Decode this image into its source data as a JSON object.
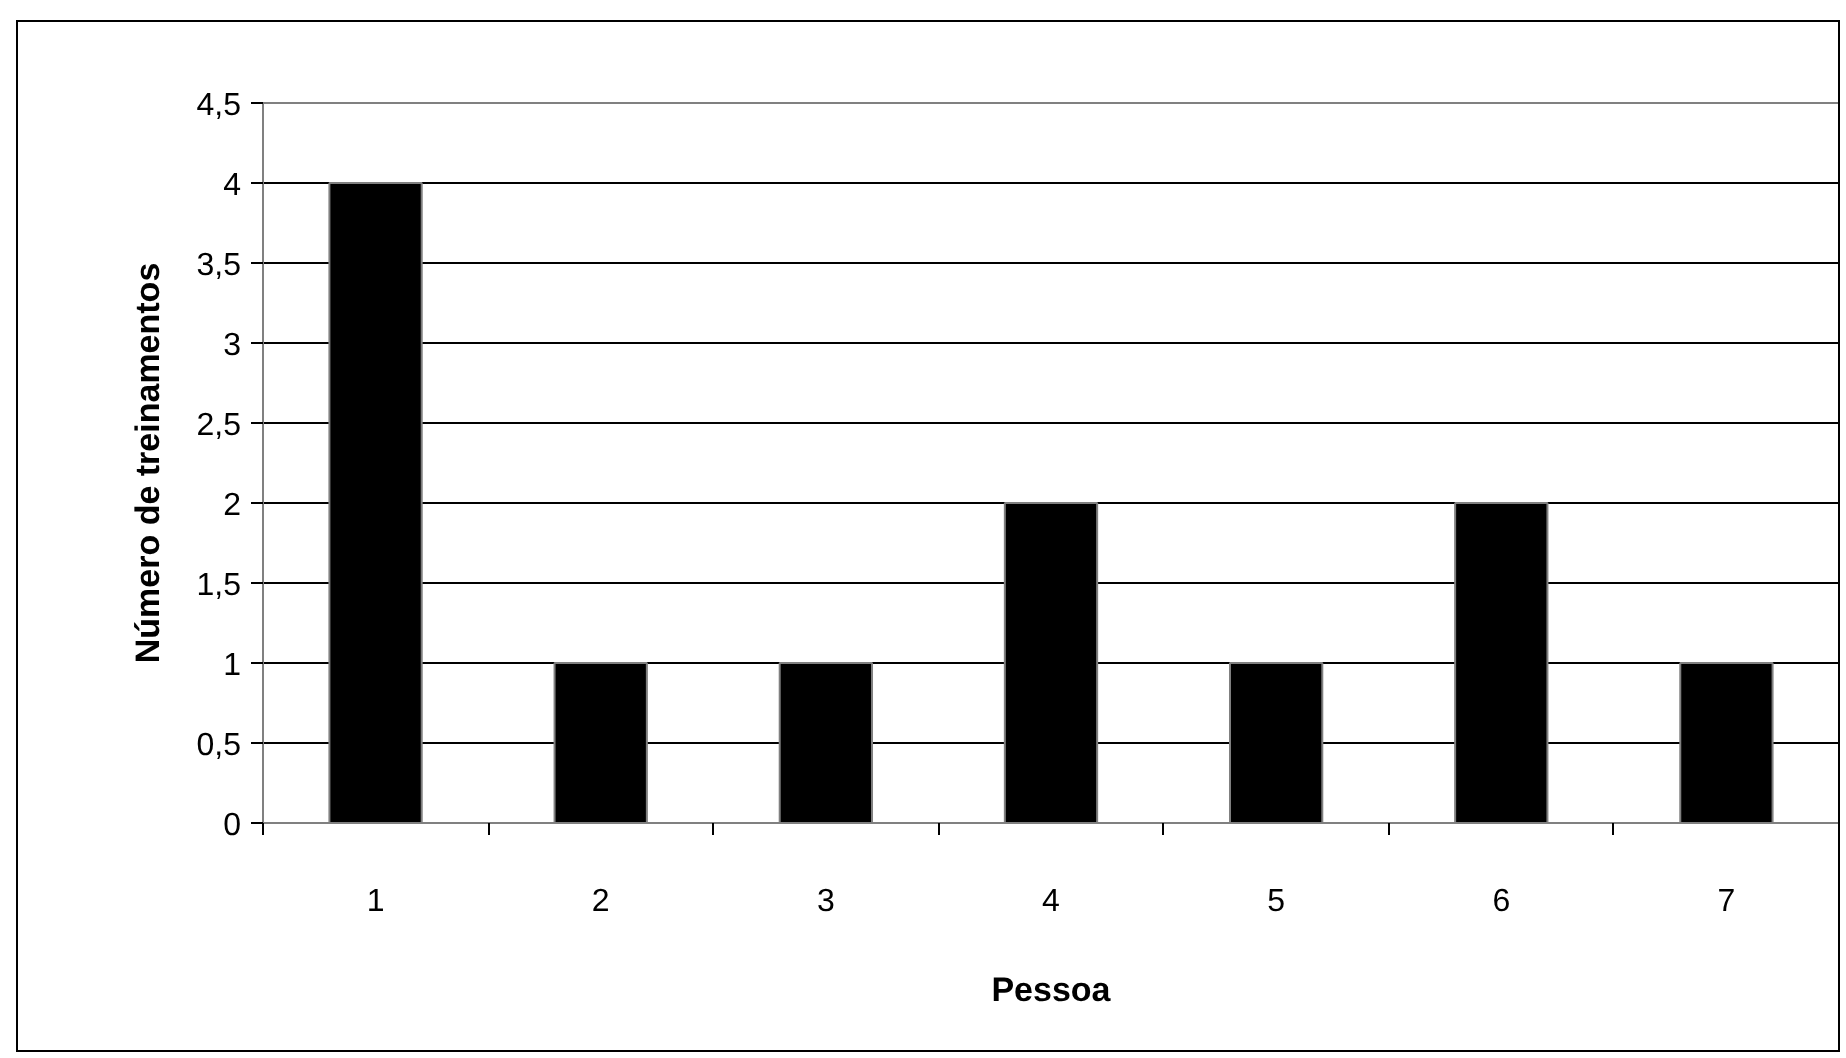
{
  "chart_data": {
    "type": "bar",
    "xlabel": "Pessoa",
    "ylabel": "Número de treinamentos",
    "categories": [
      "1",
      "2",
      "3",
      "4",
      "5",
      "6",
      "7"
    ],
    "values": [
      4,
      1,
      1,
      2,
      1,
      2,
      1
    ],
    "color": "#000000",
    "ylim": [
      0,
      4.5
    ],
    "yticks": [
      0,
      {
        "value": 0.5,
        "label": "0,5"
      },
      1,
      {
        "value": 1.5,
        "label": "1,5"
      },
      2,
      {
        "value": 2.5,
        "label": "2,5"
      },
      3,
      {
        "value": 3.5,
        "label": "3,5"
      },
      4,
      {
        "value": 4.5,
        "label": "4,5"
      }
    ],
    "grid": "y"
  }
}
